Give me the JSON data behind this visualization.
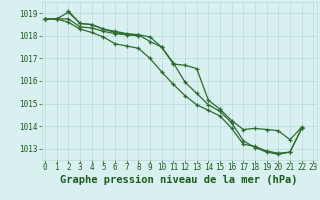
{
  "title": "Graphe pression niveau de la mer (hPa)",
  "hours": [
    0,
    1,
    2,
    3,
    4,
    5,
    6,
    7,
    8,
    9,
    10,
    11,
    12,
    13,
    14,
    15,
    16,
    17,
    18,
    19,
    20,
    21,
    22,
    23
  ],
  "line1": [
    1018.75,
    1018.75,
    1019.05,
    1018.55,
    1018.5,
    1018.3,
    1018.15,
    1018.05,
    1018.0,
    null,
    null,
    null,
    null,
    null,
    null,
    null,
    null,
    null,
    null,
    null,
    null,
    null,
    null,
    null
  ],
  "line2": [
    1018.75,
    1018.75,
    1018.6,
    1018.3,
    1018.15,
    1017.95,
    1017.65,
    1017.55,
    1017.45,
    1017.0,
    1016.4,
    1015.85,
    1015.35,
    1014.95,
    1014.7,
    1014.45,
    1013.9,
    1013.2,
    1013.1,
    1012.9,
    1012.8,
    1012.85,
    1013.9,
    null
  ],
  "line3": [
    1018.75,
    1018.75,
    1018.75,
    1018.4,
    1018.35,
    1018.2,
    1018.1,
    1018.05,
    1018.05,
    1017.75,
    1017.5,
    1016.8,
    1015.95,
    1015.45,
    1014.95,
    1014.65,
    1014.15,
    1013.35,
    1013.05,
    1012.85,
    1012.75,
    1012.85,
    1013.9,
    null
  ],
  "line4": [
    null,
    null,
    1019.1,
    1018.55,
    1018.5,
    1018.3,
    1018.2,
    1018.1,
    1018.05,
    1017.95,
    1017.5,
    1016.75,
    1016.7,
    1016.55,
    1015.15,
    1014.75,
    1014.25,
    1013.85,
    1013.9,
    1013.85,
    1013.8,
    1013.4,
    1013.95,
    null
  ],
  "line_color": "#2d6a2d",
  "bg_color": "#d9f0f0",
  "grid_color": "#b8dada",
  "text_color": "#1a5c1a",
  "ylim": [
    1012.5,
    1019.5
  ],
  "yticks": [
    1013,
    1014,
    1015,
    1016,
    1017,
    1018,
    1019
  ],
  "title_fontsize": 7.5,
  "tick_fontsize": 5.5,
  "line_width": 0.9,
  "marker_size": 3.5
}
